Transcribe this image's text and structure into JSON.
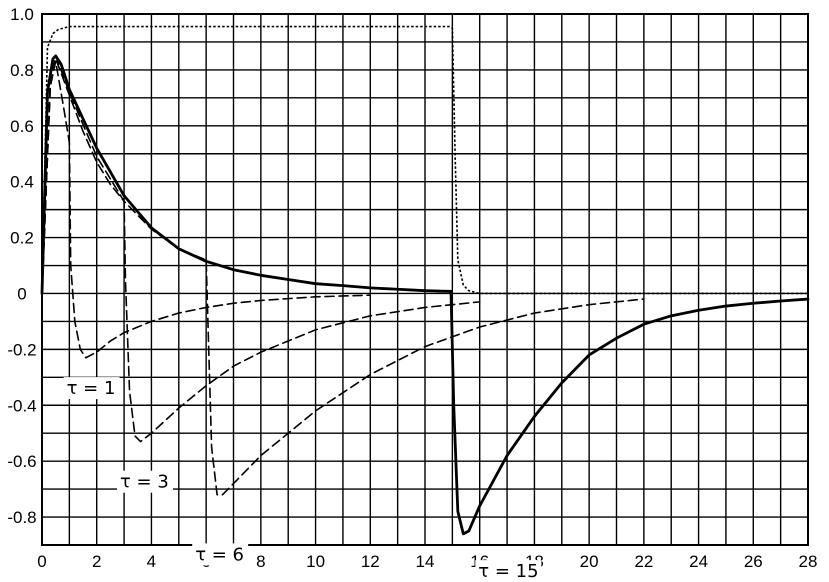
{
  "chart_data": {
    "type": "line",
    "title": "",
    "xlabel": "",
    "ylabel": "",
    "xlim": [
      0,
      28
    ],
    "ylim": [
      -0.9,
      1.0
    ],
    "grid": true,
    "x_minor_step": 1,
    "y_minor_step": 0.1,
    "x_ticks": [
      0,
      2,
      4,
      6,
      8,
      10,
      12,
      14,
      16,
      18,
      20,
      22,
      24,
      26,
      28
    ],
    "x_tick_labels": [
      "0",
      "2",
      "4",
      "6",
      "8",
      "10",
      "12",
      "14",
      "16",
      "18",
      "20",
      "22",
      "24",
      "26",
      "28"
    ],
    "y_ticks": [
      1.0,
      0.8,
      0.6,
      0.4,
      0.2,
      0,
      -0.2,
      -0.4,
      -0.6,
      -0.8
    ],
    "y_tick_labels": [
      "1.0",
      "0.8",
      "0.6",
      "0.4",
      "0.2",
      "0",
      "-0.2",
      "-0.4",
      "-0.6",
      "-0.8"
    ],
    "pulse": {
      "x": [
        0,
        0.2,
        0.4,
        0.6,
        0.8,
        1.0,
        1.5,
        2,
        4,
        6,
        8,
        10,
        12,
        14,
        14.9,
        15.0,
        15.1,
        15.2,
        15.4,
        15.6,
        16,
        18,
        20,
        22,
        24,
        26,
        28
      ],
      "y": [
        0,
        0.88,
        0.93,
        0.945,
        0.95,
        0.955,
        0.955,
        0.955,
        0.955,
        0.955,
        0.955,
        0.955,
        0.955,
        0.955,
        0.955,
        0.95,
        0.5,
        0.12,
        0.03,
        0.01,
        0,
        0,
        0,
        0,
        0,
        0,
        0
      ]
    },
    "series": [
      {
        "label": "τ = 1",
        "style": "dashed",
        "x": [
          0,
          0.3,
          0.5,
          0.8,
          1.0,
          1.05,
          1.2,
          1.4,
          1.6,
          2,
          2.5,
          3,
          4,
          5,
          6,
          7,
          8,
          10,
          12
        ],
        "y": [
          0,
          0.74,
          0.83,
          0.66,
          0.54,
          0.1,
          -0.1,
          -0.2,
          -0.23,
          -0.21,
          -0.17,
          -0.14,
          -0.1,
          -0.07,
          -0.05,
          -0.035,
          -0.025,
          -0.012,
          -0.006
        ]
      },
      {
        "label": "τ = 3",
        "style": "dashed",
        "x": [
          0,
          0.3,
          0.5,
          1,
          1.5,
          2,
          2.5,
          3.0,
          3.05,
          3.2,
          3.4,
          3.6,
          4,
          5,
          6,
          7,
          8,
          10,
          12,
          14,
          16
        ],
        "y": [
          0,
          0.74,
          0.84,
          0.71,
          0.58,
          0.47,
          0.39,
          0.33,
          0.05,
          -0.35,
          -0.51,
          -0.53,
          -0.5,
          -0.41,
          -0.33,
          -0.26,
          -0.21,
          -0.13,
          -0.08,
          -0.05,
          -0.03
        ]
      },
      {
        "label": "τ = 6",
        "style": "dashed",
        "x": [
          0,
          0.3,
          0.5,
          1,
          2,
          3,
          4,
          5,
          6.0,
          6.05,
          6.2,
          6.4,
          6.6,
          7,
          8,
          10,
          12,
          14,
          16,
          18,
          20,
          22
        ],
        "y": [
          0,
          0.74,
          0.85,
          0.72,
          0.49,
          0.33,
          0.23,
          0.16,
          0.12,
          -0.05,
          -0.55,
          -0.72,
          -0.72,
          -0.68,
          -0.58,
          -0.42,
          -0.29,
          -0.19,
          -0.12,
          -0.07,
          -0.04,
          -0.02
        ]
      },
      {
        "label": "τ = 15",
        "style": "solid",
        "x": [
          0,
          0.2,
          0.4,
          0.5,
          0.7,
          1,
          2,
          3,
          4,
          5,
          6,
          7,
          8,
          9,
          10,
          11,
          12,
          13,
          14,
          14.8,
          14.95,
          15.05,
          15.2,
          15.4,
          15.6,
          16,
          17,
          18,
          19,
          20,
          21,
          22,
          23,
          24,
          25,
          26,
          27,
          28
        ],
        "y": [
          0,
          0.72,
          0.84,
          0.85,
          0.82,
          0.73,
          0.52,
          0.35,
          0.235,
          0.16,
          0.115,
          0.085,
          0.065,
          0.05,
          0.035,
          0.028,
          0.02,
          0.015,
          0.01,
          0.008,
          0.008,
          -0.4,
          -0.78,
          -0.86,
          -0.85,
          -0.76,
          -0.58,
          -0.44,
          -0.32,
          -0.22,
          -0.16,
          -0.11,
          -0.08,
          -0.06,
          -0.045,
          -0.035,
          -0.027,
          -0.02
        ]
      }
    ],
    "annotations": [
      {
        "text": "τ = 1",
        "x": 0.9,
        "y": -0.36
      },
      {
        "text": "τ = 3",
        "x": 2.85,
        "y": -0.695
      },
      {
        "text": "τ = 6",
        "x": 5.6,
        "y": -0.955
      },
      {
        "text": "τ = 15",
        "x": 15.95,
        "y": -1.015
      }
    ]
  }
}
